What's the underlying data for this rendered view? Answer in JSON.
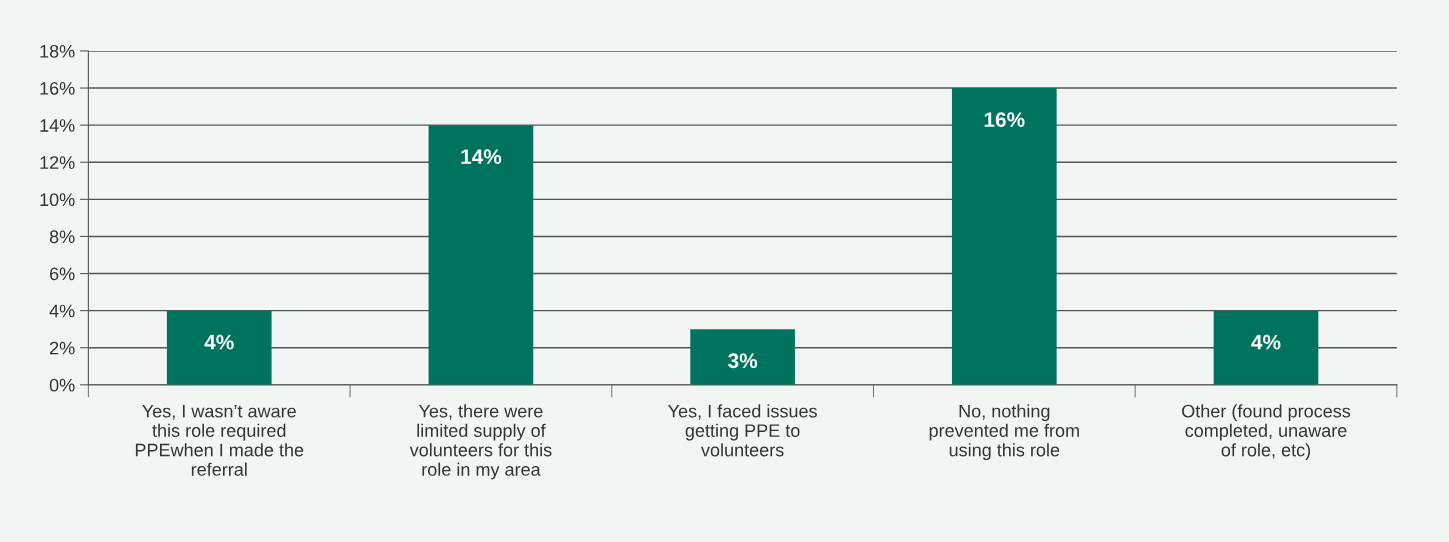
{
  "chart_data": {
    "type": "bar",
    "categories": [
      "Yes, I wasn’t aware\nthis role required\nPPEwhen I made the\nreferral",
      "Yes, there were\nlimited supply of\nvolunteers for this\nrole in my area",
      "Yes, I faced issues\ngetting PPE to\nvolunteers",
      "No, nothing\nprevented me from\nusing this role",
      "Other (found process\ncompleted, unaware\nof role, etc)"
    ],
    "values": [
      4,
      14,
      3,
      16,
      4
    ],
    "value_labels": [
      "4%",
      "14%",
      "3%",
      "16%",
      "4%"
    ],
    "color": "#00735f",
    "ylim": [
      0,
      18
    ],
    "yticks": [
      {
        "value": 0,
        "label": "0%"
      },
      {
        "value": 2,
        "label": "2%"
      },
      {
        "value": 4,
        "label": "4%"
      },
      {
        "value": 6,
        "label": "6%"
      },
      {
        "value": 8,
        "label": "8%"
      },
      {
        "value": 10,
        "label": "10%"
      },
      {
        "value": 12,
        "label": "12%"
      },
      {
        "value": 14,
        "label": "14%"
      },
      {
        "value": 16,
        "label": "16%"
      },
      {
        "value": 18,
        "label": "18%"
      }
    ],
    "grid": "y"
  }
}
